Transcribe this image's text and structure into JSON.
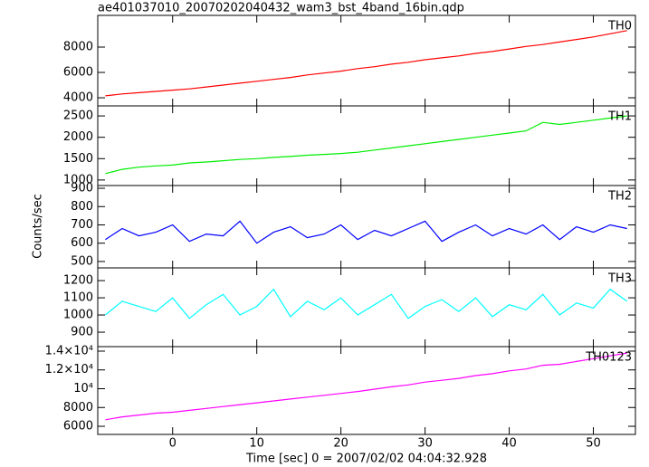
{
  "chart_data": {
    "type": "line",
    "title": "ae401037010_20070202040432_wam3_bst_4band_16bin.qdp",
    "xlabel": "Time [sec] 0 = 2007/02/02 04:04:32.928",
    "ylabel": "Counts/sec",
    "x": [
      -8,
      -6,
      -4,
      -2,
      0,
      2,
      4,
      6,
      8,
      10,
      12,
      14,
      16,
      18,
      20,
      22,
      24,
      26,
      28,
      30,
      32,
      34,
      36,
      38,
      40,
      42,
      44,
      46,
      48,
      50,
      52,
      54
    ],
    "xlim": [
      -8.9,
      55
    ],
    "xticks": [
      0,
      10,
      20,
      30,
      40,
      50
    ],
    "panels": [
      {
        "name": "TH0",
        "color": "#ff0000",
        "ylim": [
          3360,
          10500
        ],
        "yticks": [
          4000,
          6000,
          8000
        ],
        "values": [
          4150,
          4300,
          4400,
          4500,
          4600,
          4700,
          4850,
          5000,
          5150,
          5300,
          5450,
          5600,
          5800,
          5950,
          6100,
          6300,
          6450,
          6650,
          6800,
          7000,
          7150,
          7300,
          7500,
          7650,
          7850,
          8050,
          8200,
          8400,
          8600,
          8800,
          9050,
          9300
        ]
      },
      {
        "name": "TH1",
        "color": "#00ee00",
        "ylim": [
          870,
          2735
        ],
        "yticks": [
          1000,
          1500,
          2000,
          2500
        ],
        "values": [
          1150,
          1250,
          1300,
          1330,
          1350,
          1400,
          1420,
          1450,
          1480,
          1500,
          1530,
          1550,
          1580,
          1600,
          1620,
          1650,
          1700,
          1750,
          1800,
          1850,
          1900,
          1950,
          2000,
          2050,
          2100,
          2150,
          2350,
          2300,
          2350,
          2400,
          2450,
          2500
        ]
      },
      {
        "name": "TH2",
        "color": "#0000ff",
        "ylim": [
          465,
          915
        ],
        "yticks": [
          500,
          600,
          700,
          800,
          900
        ],
        "values": [
          620,
          680,
          640,
          660,
          700,
          610,
          650,
          640,
          720,
          600,
          660,
          690,
          630,
          650,
          700,
          620,
          670,
          640,
          680,
          720,
          610,
          660,
          700,
          640,
          680,
          650,
          700,
          620,
          690,
          660,
          700,
          680
        ]
      },
      {
        "name": "TH3",
        "color": "#00ffff",
        "ylim": [
          816,
          1274
        ],
        "yticks": [
          900,
          1000,
          1100,
          1200
        ],
        "values": [
          1000,
          1080,
          1050,
          1020,
          1100,
          980,
          1060,
          1120,
          1000,
          1050,
          1150,
          990,
          1080,
          1030,
          1100,
          1000,
          1060,
          1120,
          980,
          1050,
          1090,
          1020,
          1100,
          990,
          1060,
          1030,
          1120,
          1000,
          1070,
          1040,
          1150,
          1080
        ]
      },
      {
        "name": "TH0123",
        "color": "#ff00ff",
        "ylim": [
          5135,
          14480
        ],
        "yticks": [
          6000,
          8000,
          {
            "value": 10000,
            "label": "10⁴"
          },
          {
            "value": 12000,
            "label": "1.2×10⁴"
          },
          {
            "value": 14000,
            "label": "1.4×10⁴"
          }
        ],
        "values": [
          6700,
          7000,
          7200,
          7400,
          7500,
          7700,
          7900,
          8100,
          8300,
          8500,
          8700,
          8900,
          9100,
          9300,
          9500,
          9700,
          9950,
          10200,
          10400,
          10700,
          10900,
          11100,
          11400,
          11600,
          11900,
          12100,
          12500,
          12600,
          12900,
          13200,
          13500,
          13800
        ]
      }
    ]
  }
}
